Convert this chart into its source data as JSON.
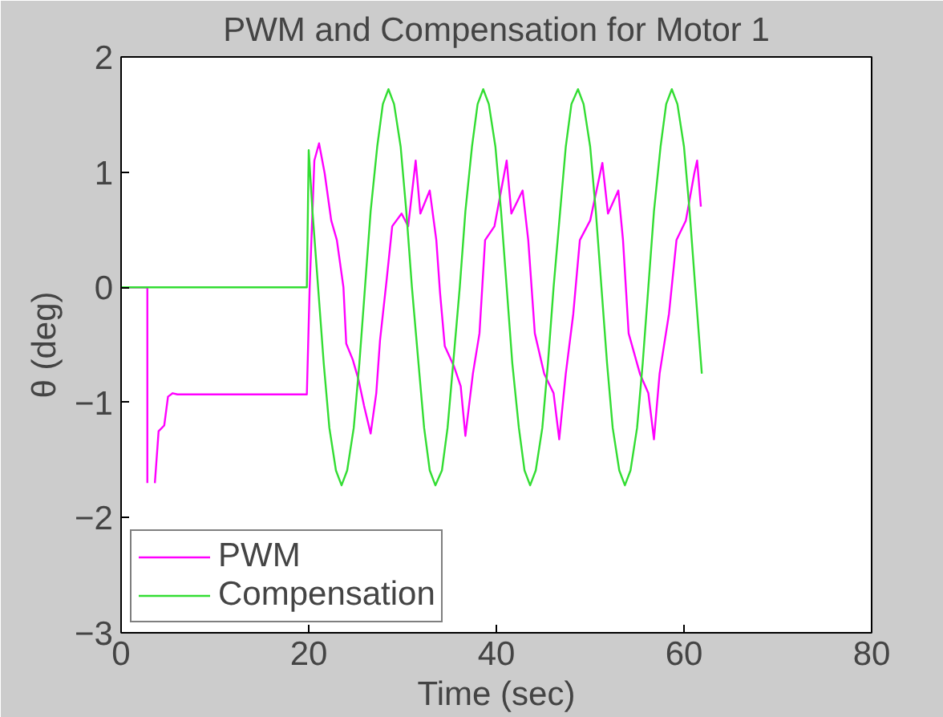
{
  "chart_data": {
    "type": "line",
    "title": "PWM and Compensation for Motor 1",
    "xlabel": "Time (sec)",
    "ylabel": "θ (deg)",
    "xlim": [
      0,
      80
    ],
    "ylim": [
      -3,
      2
    ],
    "xticks": [
      0,
      20,
      40,
      60,
      80
    ],
    "yticks": [
      -3,
      -2,
      -1,
      0,
      1,
      2
    ],
    "grid": false,
    "legend": "bottom left",
    "series": [
      {
        "name": "PWM",
        "color": "#ff00ff",
        "x": [
          0,
          2.8,
          2.8,
          3.2,
          3.6,
          4.0,
          4.6,
          5.0,
          5.5,
          6.0,
          19.8,
          20.1,
          20.6,
          21.1,
          21.7,
          22.4,
          23.0,
          23.7,
          24.0,
          24.7,
          25.3,
          25.9,
          26.6,
          27.2,
          27.6,
          28.3,
          28.9,
          29.9,
          30.6,
          31.4,
          31.9,
          32.9,
          33.6,
          34.0,
          34.5,
          35.5,
          36.2,
          36.7,
          37.5,
          38.2,
          38.8,
          39.8,
          41.1,
          41.6,
          42.8,
          43.4,
          44.1,
          45.1,
          46.1,
          46.7,
          47.4,
          48.2,
          48.9,
          50.0,
          51.3,
          51.9,
          53.0,
          53.5,
          54.1,
          55.3,
          56.2,
          56.8,
          57.4,
          58.4,
          59.2,
          60.2,
          61.1,
          61.4,
          61.8
        ],
        "values": [
          0,
          0,
          -1.7,
          null,
          -1.7,
          -1.25,
          -1.2,
          -0.95,
          -0.92,
          -0.93,
          -0.93,
          0,
          1.1,
          1.25,
          0.99,
          0.58,
          0.41,
          0,
          -0.49,
          -0.63,
          -0.8,
          -1.03,
          -1.27,
          -0.92,
          -0.46,
          0.06,
          0.53,
          0.64,
          0.53,
          1.1,
          0.64,
          0.84,
          0.41,
          -0.05,
          -0.51,
          -0.69,
          -0.86,
          -1.29,
          -0.75,
          -0.4,
          0.41,
          0.53,
          1.1,
          0.64,
          0.84,
          0.41,
          -0.4,
          -0.75,
          -0.92,
          -1.32,
          -0.75,
          -0.23,
          0.41,
          0.58,
          1.08,
          0.64,
          0.84,
          0.41,
          -0.4,
          -0.75,
          -0.92,
          -1.32,
          -0.75,
          -0.23,
          0.41,
          0.58,
          0.99,
          1.1,
          0.7
        ]
      },
      {
        "name": "Compensation",
        "color": "#33dd33",
        "x": [
          0,
          19.8,
          20.0,
          20.4,
          21.0,
          21.6,
          22.2,
          22.9,
          23.5,
          24.1,
          24.8,
          25.4,
          26.0,
          26.6,
          27.3,
          27.9,
          28.5,
          29.1,
          29.8,
          30.4,
          31.0,
          31.7,
          32.3,
          32.9,
          33.5,
          34.2,
          34.8,
          35.4,
          36.1,
          36.7,
          37.4,
          38.0,
          38.6,
          39.2,
          39.9,
          40.5,
          41.1,
          41.7,
          42.4,
          43.0,
          43.6,
          44.2,
          44.9,
          45.5,
          46.1,
          46.8,
          47.4,
          48.0,
          48.7,
          49.3,
          50.0,
          50.6,
          51.2,
          51.8,
          52.4,
          53.1,
          53.7,
          54.3,
          55.0,
          55.6,
          56.2,
          56.8,
          57.5,
          58.1,
          58.7,
          59.3,
          60.0,
          60.6,
          61.2,
          61.9
        ],
        "values": [
          0,
          0,
          1.19,
          0.66,
          0,
          -0.66,
          -1.22,
          -1.59,
          -1.72,
          -1.59,
          -1.22,
          -0.66,
          0,
          0.66,
          1.22,
          1.59,
          1.72,
          1.59,
          1.22,
          0.66,
          0,
          -0.66,
          -1.22,
          -1.59,
          -1.72,
          -1.59,
          -1.22,
          -0.66,
          0,
          0.66,
          1.22,
          1.59,
          1.72,
          1.59,
          1.22,
          0.66,
          0,
          -0.66,
          -1.22,
          -1.59,
          -1.72,
          -1.59,
          -1.22,
          -0.66,
          0,
          0.66,
          1.22,
          1.59,
          1.72,
          1.59,
          1.22,
          0.66,
          0,
          -0.66,
          -1.22,
          -1.59,
          -1.72,
          -1.59,
          -1.22,
          -0.66,
          0,
          0.66,
          1.22,
          1.59,
          1.72,
          1.59,
          1.22,
          0.66,
          0,
          -0.75
        ]
      }
    ]
  }
}
